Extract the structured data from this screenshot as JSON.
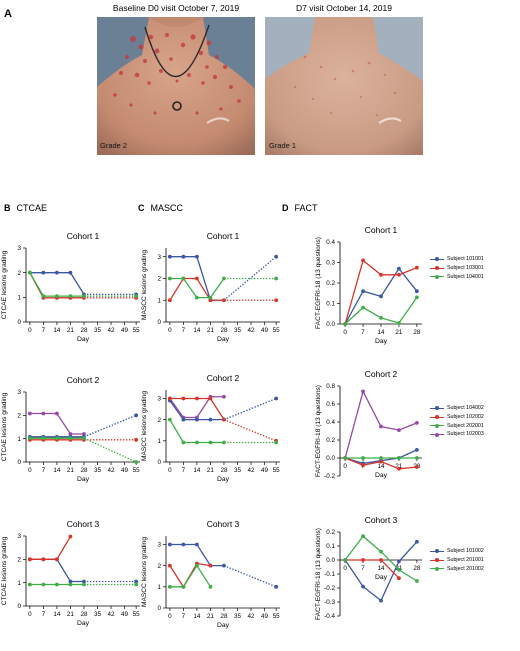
{
  "panel_a": {
    "letter": "A",
    "left_caption": "Baseline D0 visit October 7, 2019",
    "right_caption": "D7 visit October 14, 2019",
    "left_grade": "Grade 2",
    "right_grade": "Grade 1"
  },
  "sections": [
    {
      "letter": "B",
      "title": "CTCAE"
    },
    {
      "letter": "C",
      "title": "MASCC"
    },
    {
      "letter": "D",
      "title": "FACT"
    }
  ],
  "colors": {
    "blue": "#3b57a5",
    "red": "#d8342a",
    "green": "#3fae49",
    "purple": "#9648a6"
  },
  "legends": [
    [
      {
        "label": "Subject 101001",
        "color": "#3b57a5"
      },
      {
        "label": "Subject 103001",
        "color": "#d8342a"
      },
      {
        "label": "Subject 104001",
        "color": "#3fae49"
      }
    ],
    [
      {
        "label": "Subject 104002",
        "color": "#3b57a5"
      },
      {
        "label": "Subject 102002",
        "color": "#d8342a"
      },
      {
        "label": "Subject 202001",
        "color": "#3fae49"
      },
      {
        "label": "Subject 102003",
        "color": "#9648a6"
      }
    ],
    [
      {
        "label": "Subject 101002",
        "color": "#3b57a5"
      },
      {
        "label": "Subject 201001",
        "color": "#d8342a"
      },
      {
        "label": "Subject 201002",
        "color": "#3fae49"
      }
    ]
  ],
  "chart_data": [
    {
      "id": "B1",
      "type": "line",
      "title": "Cohort 1",
      "xlabel": "Day",
      "ylabel": "CTCAE lesions grading",
      "xlim": [
        -2,
        57
      ],
      "ylim": [
        0,
        3
      ],
      "xticks": [
        0,
        7,
        14,
        21,
        28,
        35,
        42,
        49,
        55
      ],
      "yticks": [
        0,
        1,
        2,
        3
      ],
      "series": [
        {
          "color": "blue",
          "x": [
            0,
            7,
            14,
            21,
            28
          ],
          "y": [
            2,
            2,
            2,
            2,
            1.12
          ],
          "dotted_to": [
            55,
            1.12
          ]
        },
        {
          "color": "red",
          "x": [
            0,
            7,
            14,
            21,
            28
          ],
          "y": [
            2,
            0.98,
            0.98,
            0.98,
            0.98
          ],
          "dotted_to": [
            55,
            0.98
          ]
        },
        {
          "color": "green",
          "x": [
            0,
            7,
            14,
            21,
            28
          ],
          "y": [
            2,
            1.05,
            1.05,
            1.05,
            1.05
          ],
          "dotted_to": [
            55,
            1.05
          ]
        }
      ]
    },
    {
      "id": "C1",
      "type": "line",
      "title": "Cohort 1",
      "xlabel": "Day",
      "ylabel": "MASCC lesions grading",
      "xlim": [
        -2,
        57
      ],
      "ylim": [
        0,
        3.4
      ],
      "xticks": [
        0,
        7,
        14,
        21,
        28,
        35,
        42,
        49,
        55
      ],
      "yticks": [
        0,
        1,
        2,
        3
      ],
      "series": [
        {
          "color": "blue",
          "x": [
            0,
            7,
            14,
            21,
            28
          ],
          "y": [
            3,
            3,
            3,
            1,
            1
          ],
          "dotted_to": [
            55,
            3
          ]
        },
        {
          "color": "red",
          "x": [
            0,
            7,
            14,
            21,
            28
          ],
          "y": [
            1,
            2,
            2,
            1,
            1
          ],
          "dotted_to": [
            55,
            1
          ]
        },
        {
          "color": "green",
          "x": [
            0,
            7,
            14,
            21,
            28
          ],
          "y": [
            2,
            2,
            1.12,
            1.12,
            2
          ],
          "dotted_to": [
            55,
            2
          ]
        }
      ]
    },
    {
      "id": "D1",
      "type": "line",
      "title": "Cohort 1",
      "xlabel": "Day",
      "ylabel": "FACT-EGFRI-18 (13 questions)",
      "xlim": [
        -2,
        30
      ],
      "ylim": [
        0,
        0.4
      ],
      "xticks": [
        0,
        7,
        14,
        21,
        28
      ],
      "yticks": [
        0.0,
        0.1,
        0.2,
        0.3,
        0.4
      ],
      "series": [
        {
          "color": "blue",
          "x": [
            0,
            7,
            14,
            21,
            28
          ],
          "y": [
            0,
            0.16,
            0.135,
            0.27,
            0.16
          ]
        },
        {
          "color": "red",
          "x": [
            0,
            7,
            14,
            21,
            28
          ],
          "y": [
            0,
            0.31,
            0.24,
            0.24,
            0.275
          ]
        },
        {
          "color": "green",
          "x": [
            0,
            7,
            14,
            21,
            28
          ],
          "y": [
            0,
            0.08,
            0.03,
            0.005,
            0.13
          ]
        }
      ]
    },
    {
      "id": "B2",
      "type": "line",
      "title": "Cohort 2",
      "xlabel": "Day",
      "ylabel": "CTCAE lesions grading",
      "xlim": [
        -2,
        57
      ],
      "ylim": [
        0,
        3
      ],
      "xticks": [
        0,
        7,
        14,
        21,
        28,
        35,
        42,
        49,
        55
      ],
      "yticks": [
        0,
        1,
        2,
        3
      ],
      "series": [
        {
          "color": "purple",
          "x": [
            0,
            7,
            14,
            21,
            28
          ],
          "y": [
            2.08,
            2.08,
            2.08,
            1.2,
            1.2
          ]
        },
        {
          "color": "blue",
          "x": [
            0,
            7,
            14,
            21,
            28
          ],
          "y": [
            1.08,
            1.08,
            1.08,
            1.08,
            1.08
          ],
          "dotted_to": [
            55,
            2
          ]
        },
        {
          "color": "red",
          "x": [
            0,
            7,
            14,
            21,
            28
          ],
          "y": [
            0.95,
            0.95,
            0.95,
            0.95,
            0.95
          ],
          "dotted_to": [
            55,
            0.95
          ]
        },
        {
          "color": "green",
          "x": [
            0,
            7,
            14,
            21,
            28
          ],
          "y": [
            1.02,
            1.02,
            1.02,
            1.02,
            1.02
          ],
          "dotted_to": [
            55,
            0
          ]
        }
      ]
    },
    {
      "id": "C2",
      "type": "line",
      "title": "Cohort 2",
      "xlabel": "Day",
      "ylabel": "MASCC lesions grading",
      "xlim": [
        -2,
        57
      ],
      "ylim": [
        0,
        3.4
      ],
      "xticks": [
        0,
        7,
        14,
        21,
        28,
        35,
        42,
        49,
        55
      ],
      "yticks": [
        0,
        1,
        2,
        3
      ],
      "series": [
        {
          "color": "purple",
          "x": [
            0,
            7,
            14,
            21,
            28
          ],
          "y": [
            3,
            2.1,
            2.1,
            3.08,
            3.08
          ]
        },
        {
          "color": "blue",
          "x": [
            0,
            7,
            14,
            21,
            28
          ],
          "y": [
            2.9,
            2,
            2,
            2,
            2
          ],
          "dotted_to": [
            55,
            3
          ]
        },
        {
          "color": "red",
          "x": [
            0,
            7,
            14,
            21,
            28
          ],
          "y": [
            3,
            3,
            3,
            3,
            2
          ],
          "dotted_to": [
            55,
            1
          ]
        },
        {
          "color": "green",
          "x": [
            0,
            7,
            14,
            21,
            28
          ],
          "y": [
            2,
            0.92,
            0.92,
            0.92,
            0.92
          ],
          "dotted_to": [
            55,
            0.92
          ]
        }
      ]
    },
    {
      "id": "D2",
      "type": "line",
      "title": "Cohort 2",
      "xlabel": "Day",
      "ylabel": "FACT-EGFRI-18 (13 questions)",
      "xlim": [
        -2,
        30
      ],
      "ylim": [
        -0.2,
        0.8
      ],
      "xticks": [
        0,
        7,
        14,
        21,
        28
      ],
      "yticks": [
        -0.2,
        0.0,
        0.2,
        0.4,
        0.6,
        0.8
      ],
      "xticks_at_zero": true,
      "series": [
        {
          "color": "purple",
          "x": [
            0,
            7,
            14,
            21,
            28
          ],
          "y": [
            0,
            0.74,
            0.35,
            0.31,
            0.39
          ]
        },
        {
          "color": "blue",
          "x": [
            0,
            7,
            14,
            21,
            28
          ],
          "y": [
            0,
            -0.06,
            -0.03,
            0.0,
            0.09
          ]
        },
        {
          "color": "red",
          "x": [
            0,
            7,
            14,
            21,
            28
          ],
          "y": [
            0,
            -0.08,
            -0.04,
            -0.12,
            -0.1
          ]
        },
        {
          "color": "green",
          "x": [
            0,
            7,
            14,
            21,
            28
          ],
          "y": [
            0,
            0,
            0,
            0,
            0
          ]
        }
      ]
    },
    {
      "id": "B3",
      "type": "line",
      "title": "Cohort 3",
      "xlabel": "Day",
      "ylabel": "CTCAE lesions grading",
      "xlim": [
        -2,
        57
      ],
      "ylim": [
        0,
        3
      ],
      "xticks": [
        0,
        7,
        14,
        21,
        28,
        35,
        42,
        49,
        55
      ],
      "yticks": [
        0,
        1,
        2,
        3
      ],
      "series": [
        {
          "color": "blue",
          "x": [
            0,
            7,
            14,
            21,
            28
          ],
          "y": [
            2,
            2,
            2,
            1.05,
            1.05
          ],
          "dotted_to": [
            55,
            1.05
          ]
        },
        {
          "color": "red",
          "x": [
            0,
            7,
            14,
            21
          ],
          "y": [
            2,
            2,
            2,
            2.98
          ]
        },
        {
          "color": "green",
          "x": [
            0,
            7,
            14,
            21,
            28
          ],
          "y": [
            0.92,
            0.92,
            0.92,
            0.92,
            0.92
          ],
          "dotted_to": [
            55,
            0.92
          ]
        }
      ]
    },
    {
      "id": "C3",
      "type": "line",
      "title": "Cohort 3",
      "xlabel": "Day",
      "ylabel": "MASCC lesions grading",
      "xlim": [
        -2,
        57
      ],
      "ylim": [
        0,
        3.4
      ],
      "xticks": [
        0,
        7,
        14,
        21,
        28,
        35,
        42,
        49,
        55
      ],
      "yticks": [
        0,
        1,
        2,
        3
      ],
      "series": [
        {
          "color": "blue",
          "x": [
            0,
            7,
            14,
            21,
            28
          ],
          "y": [
            3,
            3,
            3,
            2,
            2
          ],
          "dotted_to": [
            55,
            1
          ]
        },
        {
          "color": "red",
          "x": [
            0,
            7,
            14,
            21
          ],
          "y": [
            2,
            1,
            2.1,
            2
          ]
        },
        {
          "color": "green",
          "x": [
            0,
            7,
            14,
            21
          ],
          "y": [
            1,
            1,
            2,
            1
          ]
        }
      ]
    },
    {
      "id": "D3",
      "type": "line",
      "title": "Cohort 3",
      "xlabel": "Day",
      "ylabel": "FACT-EGFRI-18 (13 questions)",
      "xlim": [
        -2,
        30
      ],
      "ylim": [
        -0.4,
        0.2
      ],
      "xticks": [
        0,
        7,
        14,
        21,
        28
      ],
      "yticks": [
        -0.4,
        -0.3,
        -0.2,
        -0.1,
        0.0,
        0.1,
        0.2
      ],
      "xticks_at_zero": true,
      "series": [
        {
          "color": "blue",
          "x": [
            0,
            7,
            14,
            21,
            28
          ],
          "y": [
            0,
            -0.19,
            -0.29,
            -0.01,
            0.13
          ]
        },
        {
          "color": "red",
          "x": [
            0,
            7,
            14,
            21
          ],
          "y": [
            0,
            0,
            0,
            -0.13
          ]
        },
        {
          "color": "green",
          "x": [
            0,
            7,
            14,
            21,
            28
          ],
          "y": [
            0,
            0.17,
            0.06,
            -0.07,
            -0.15
          ]
        }
      ]
    }
  ]
}
